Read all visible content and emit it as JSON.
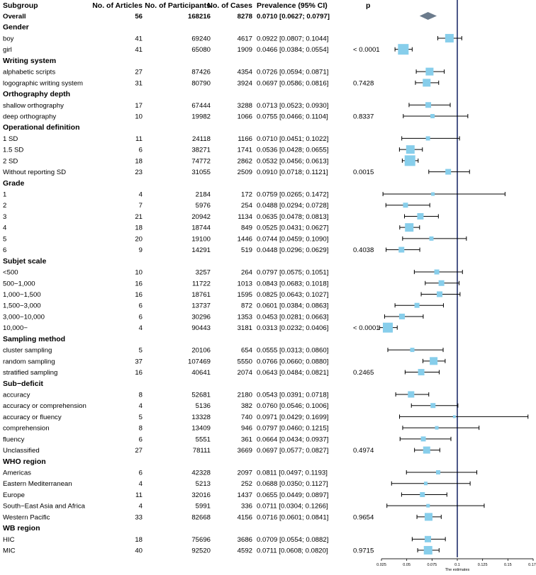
{
  "chart_data": {
    "type": "forest",
    "headers": {
      "subgroup": "Subgroup",
      "articles": "No. of Articles",
      "participants": "No. of Participants",
      "cases": "No. of Cases",
      "prevalence": "Prevalence (95% CI)",
      "p": "p"
    },
    "xlabel": "The estimates",
    "xlim": [
      0.025,
      0.175
    ],
    "xticks": [
      "0.025",
      "0.05",
      "0.075",
      "0.1",
      "0.125",
      "0.15",
      "0.175"
    ],
    "reference_line": 0.1,
    "colors": {
      "box": "#87ceeb",
      "diamond": "#6b7b8c",
      "reference": "#1f2d6b",
      "whisker": "#000000"
    },
    "rows": [
      {
        "kind": "overall",
        "label": "Overall",
        "articles": "56",
        "participants": "168216",
        "cases": "8278",
        "ci_text": "0.0710 [0.0627; 0.0797]",
        "p": "",
        "est": 0.071,
        "lo": 0.0627,
        "hi": 0.0797
      },
      {
        "kind": "header",
        "label": "Gender"
      },
      {
        "kind": "row",
        "label": "boy",
        "articles": "41",
        "participants": "69240",
        "cases": "4617",
        "ci_text": "0.0922 [0.0807; 0.1044]",
        "p": "",
        "est": 0.0922,
        "lo": 0.0807,
        "hi": 0.1044,
        "size": 12
      },
      {
        "kind": "row",
        "label": "girl",
        "articles": "41",
        "participants": "65080",
        "cases": "1909",
        "ci_text": "0.0466 [0.0384; 0.0554]",
        "p": "< 0.0001",
        "est": 0.0466,
        "lo": 0.0384,
        "hi": 0.0554,
        "size": 15
      },
      {
        "kind": "header",
        "label": "Writing system"
      },
      {
        "kind": "row",
        "label": "alphabetic scripts",
        "articles": "27",
        "participants": "87426",
        "cases": "4354",
        "ci_text": "0.0726 [0.0594; 0.0871]",
        "p": "",
        "est": 0.0726,
        "lo": 0.0594,
        "hi": 0.0871,
        "size": 11
      },
      {
        "kind": "row",
        "label": "logographic writing system",
        "articles": "31",
        "participants": "80790",
        "cases": "3924",
        "ci_text": "0.0697 [0.0586; 0.0816]",
        "p": "0.7428",
        "est": 0.0697,
        "lo": 0.0586,
        "hi": 0.0816,
        "size": 11
      },
      {
        "kind": "header",
        "label": "Orthography depth"
      },
      {
        "kind": "row",
        "label": "shallow orthography",
        "articles": "17",
        "participants": "67444",
        "cases": "3288",
        "ci_text": "0.0713 [0.0523; 0.0930]",
        "p": "",
        "est": 0.0713,
        "lo": 0.0523,
        "hi": 0.093,
        "size": 8
      },
      {
        "kind": "row",
        "label": "deep orthography",
        "articles": "10",
        "participants": "19982",
        "cases": "1066",
        "ci_text": "0.0755 [0.0466; 0.1104]",
        "p": "0.8337",
        "est": 0.0755,
        "lo": 0.0466,
        "hi": 0.1104,
        "size": 6
      },
      {
        "kind": "header",
        "label": "Operational definition"
      },
      {
        "kind": "row",
        "label": "1 SD",
        "articles": "11",
        "participants": "24118",
        "cases": "1166",
        "ci_text": "0.0710 [0.0451; 0.1022]",
        "p": "",
        "est": 0.071,
        "lo": 0.0451,
        "hi": 0.1022,
        "size": 6
      },
      {
        "kind": "row",
        "label": "1.5 SD",
        "articles": "6",
        "participants": "38271",
        "cases": "1741",
        "ci_text": "0.0536 [0.0428; 0.0655]",
        "p": "",
        "est": 0.0536,
        "lo": 0.0428,
        "hi": 0.0655,
        "size": 12
      },
      {
        "kind": "row",
        "label": "2 SD",
        "articles": "18",
        "participants": "74772",
        "cases": "2862",
        "ci_text": "0.0532 [0.0456; 0.0613]",
        "p": "",
        "est": 0.0532,
        "lo": 0.0456,
        "hi": 0.0613,
        "size": 15
      },
      {
        "kind": "row",
        "label": "Without reporting SD",
        "articles": "23",
        "participants": "31055",
        "cases": "2509",
        "ci_text": "0.0910 [0.0718; 0.1121]",
        "p": "0.0015",
        "est": 0.091,
        "lo": 0.0718,
        "hi": 0.1121,
        "size": 8
      },
      {
        "kind": "header",
        "label": "Grade"
      },
      {
        "kind": "row",
        "label": "1",
        "articles": "4",
        "participants": "2184",
        "cases": "172",
        "ci_text": "0.0759 [0.0265; 0.1472]",
        "p": "",
        "est": 0.0759,
        "lo": 0.0265,
        "hi": 0.1472,
        "size": 5
      },
      {
        "kind": "row",
        "label": "2",
        "articles": "7",
        "participants": "5976",
        "cases": "254",
        "ci_text": "0.0488 [0.0294; 0.0728]",
        "p": "",
        "est": 0.0488,
        "lo": 0.0294,
        "hi": 0.0728,
        "size": 7
      },
      {
        "kind": "row",
        "label": "3",
        "articles": "21",
        "participants": "20942",
        "cases": "1134",
        "ci_text": "0.0635 [0.0478; 0.0813]",
        "p": "",
        "est": 0.0635,
        "lo": 0.0478,
        "hi": 0.0813,
        "size": 9
      },
      {
        "kind": "row",
        "label": "4",
        "articles": "18",
        "participants": "18744",
        "cases": "849",
        "ci_text": "0.0525 [0.0431; 0.0627]",
        "p": "",
        "est": 0.0525,
        "lo": 0.0431,
        "hi": 0.0627,
        "size": 12
      },
      {
        "kind": "row",
        "label": "5",
        "articles": "20",
        "participants": "19100",
        "cases": "1446",
        "ci_text": "0.0744 [0.0459; 0.1090]",
        "p": "",
        "est": 0.0744,
        "lo": 0.0459,
        "hi": 0.109,
        "size": 6
      },
      {
        "kind": "row",
        "label": "6",
        "articles": "9",
        "participants": "14291",
        "cases": "519",
        "ci_text": "0.0448 [0.0296; 0.0629]",
        "p": "0.4038",
        "est": 0.0448,
        "lo": 0.0296,
        "hi": 0.0629,
        "size": 8
      },
      {
        "kind": "header",
        "label": "Subjet scale"
      },
      {
        "kind": "row",
        "label": "<500",
        "articles": "10",
        "participants": "3257",
        "cases": "264",
        "ci_text": "0.0797 [0.0575; 0.1051]",
        "p": "",
        "est": 0.0797,
        "lo": 0.0575,
        "hi": 0.1051,
        "size": 7
      },
      {
        "kind": "row",
        "label": "500−1,000",
        "articles": "16",
        "participants": "11722",
        "cases": "1013",
        "ci_text": "0.0843 [0.0683; 0.1018]",
        "p": "",
        "est": 0.0843,
        "lo": 0.0683,
        "hi": 0.1018,
        "size": 8
      },
      {
        "kind": "row",
        "label": "1,000−1,500",
        "articles": "16",
        "participants": "18761",
        "cases": "1595",
        "ci_text": "0.0825 [0.0643; 0.1027]",
        "p": "",
        "est": 0.0825,
        "lo": 0.0643,
        "hi": 0.1027,
        "size": 8
      },
      {
        "kind": "row",
        "label": "1,500−3,000",
        "articles": "6",
        "participants": "13737",
        "cases": "872",
        "ci_text": "0.0601 [0.0384; 0.0863]",
        "p": "",
        "est": 0.0601,
        "lo": 0.0384,
        "hi": 0.0863,
        "size": 7
      },
      {
        "kind": "row",
        "label": "3,000−10,000",
        "articles": "6",
        "participants": "30296",
        "cases": "1353",
        "ci_text": "0.0453 [0.0281; 0.0663]",
        "p": "",
        "est": 0.0453,
        "lo": 0.0281,
        "hi": 0.0663,
        "size": 8
      },
      {
        "kind": "row",
        "label": "10,000−",
        "articles": "4",
        "participants": "90443",
        "cases": "3181",
        "ci_text": "0.0313 [0.0232; 0.0406]",
        "p": "< 0.0001",
        "est": 0.0313,
        "lo": 0.0232,
        "hi": 0.0406,
        "size": 14
      },
      {
        "kind": "header",
        "label": "Sampling method"
      },
      {
        "kind": "row",
        "label": "cluster sampling",
        "articles": "5",
        "participants": "20106",
        "cases": "654",
        "ci_text": "0.0555 [0.0313; 0.0860]",
        "p": "",
        "est": 0.0555,
        "lo": 0.0313,
        "hi": 0.086,
        "size": 6
      },
      {
        "kind": "row",
        "label": "random sampling",
        "articles": "37",
        "participants": "107469",
        "cases": "5550",
        "ci_text": "0.0766 [0.0660; 0.0880]",
        "p": "",
        "est": 0.0766,
        "lo": 0.066,
        "hi": 0.088,
        "size": 11
      },
      {
        "kind": "row",
        "label": "stratified sampling",
        "articles": "16",
        "participants": "40641",
        "cases": "2074",
        "ci_text": "0.0643 [0.0484; 0.0821]",
        "p": "0.2465",
        "est": 0.0643,
        "lo": 0.0484,
        "hi": 0.0821,
        "size": 9
      },
      {
        "kind": "header",
        "label": "Sub−deficit"
      },
      {
        "kind": "row",
        "label": "accuracy",
        "articles": "8",
        "participants": "52681",
        "cases": "2180",
        "ci_text": "0.0543 [0.0391; 0.0718]",
        "p": "",
        "est": 0.0543,
        "lo": 0.0391,
        "hi": 0.0718,
        "size": 9
      },
      {
        "kind": "row",
        "label": "accuracy or comprehension",
        "articles": "4",
        "participants": "5136",
        "cases": "382",
        "ci_text": "0.0760 [0.0546; 0.1006]",
        "p": "",
        "est": 0.076,
        "lo": 0.0546,
        "hi": 0.1006,
        "size": 7
      },
      {
        "kind": "row",
        "label": "accuracy or fluency",
        "articles": "5",
        "participants": "13328",
        "cases": "740",
        "ci_text": "0.0971 [0.0429; 0.1699]",
        "p": "",
        "est": 0.0971,
        "lo": 0.0429,
        "hi": 0.1699,
        "size": 4
      },
      {
        "kind": "row",
        "label": "comprehension",
        "articles": "8",
        "participants": "13409",
        "cases": "946",
        "ci_text": "0.0797 [0.0460; 0.1215]",
        "p": "",
        "est": 0.0797,
        "lo": 0.046,
        "hi": 0.1215,
        "size": 5
      },
      {
        "kind": "row",
        "label": "fluency",
        "articles": "6",
        "participants": "5551",
        "cases": "361",
        "ci_text": "0.0664 [0.0434; 0.0937]",
        "p": "",
        "est": 0.0664,
        "lo": 0.0434,
        "hi": 0.0937,
        "size": 7
      },
      {
        "kind": "row",
        "label": "Unclassified",
        "articles": "27",
        "participants": "78111",
        "cases": "3669",
        "ci_text": "0.0697 [0.0577; 0.0827]",
        "p": "0.4974",
        "est": 0.0697,
        "lo": 0.0577,
        "hi": 0.0827,
        "size": 10
      },
      {
        "kind": "header",
        "label": "WHO region"
      },
      {
        "kind": "row",
        "label": "Americas",
        "articles": "6",
        "participants": "42328",
        "cases": "2097",
        "ci_text": "0.0811 [0.0497; 0.1193]",
        "p": "",
        "est": 0.0811,
        "lo": 0.0497,
        "hi": 0.1193,
        "size": 6
      },
      {
        "kind": "row",
        "label": "Eastern Mediterranean",
        "articles": "4",
        "participants": "5213",
        "cases": "252",
        "ci_text": "0.0688 [0.0350; 0.1127]",
        "p": "",
        "est": 0.0688,
        "lo": 0.035,
        "hi": 0.1127,
        "size": 5
      },
      {
        "kind": "row",
        "label": "Europe",
        "articles": "11",
        "participants": "32016",
        "cases": "1437",
        "ci_text": "0.0655 [0.0449; 0.0897]",
        "p": "",
        "est": 0.0655,
        "lo": 0.0449,
        "hi": 0.0897,
        "size": 7
      },
      {
        "kind": "row",
        "label": "South−East Asia and Africa",
        "articles": "4",
        "participants": "5991",
        "cases": "336",
        "ci_text": "0.0711 [0.0304; 0.1266]",
        "p": "",
        "est": 0.0711,
        "lo": 0.0304,
        "hi": 0.1266,
        "size": 5
      },
      {
        "kind": "row",
        "label": "Western Pacific",
        "articles": "33",
        "participants": "82668",
        "cases": "4156",
        "ci_text": "0.0716 [0.0601; 0.0841]",
        "p": "0.9654",
        "est": 0.0716,
        "lo": 0.0601,
        "hi": 0.0841,
        "size": 11
      },
      {
        "kind": "header",
        "label": "WB region"
      },
      {
        "kind": "row",
        "label": "HIC",
        "articles": "18",
        "participants": "75696",
        "cases": "3686",
        "ci_text": "0.0709 [0.0554; 0.0882]",
        "p": "",
        "est": 0.0709,
        "lo": 0.0554,
        "hi": 0.0882,
        "size": 9
      },
      {
        "kind": "row",
        "label": "MIC",
        "articles": "40",
        "participants": "92520",
        "cases": "4592",
        "ci_text": "0.0711 [0.0608; 0.0820]",
        "p": "0.9715",
        "est": 0.0711,
        "lo": 0.0608,
        "hi": 0.082,
        "size": 12
      }
    ]
  }
}
